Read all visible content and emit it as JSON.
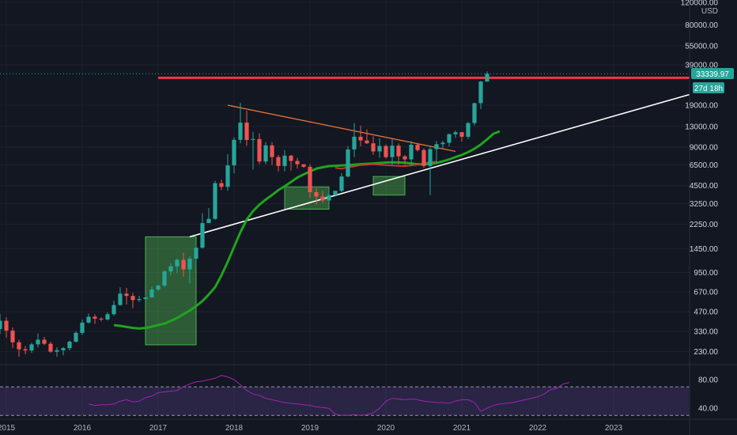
{
  "chart_data": {
    "type": "candlestick",
    "currency": "USD",
    "y_scale": "log",
    "ylim": [
      185,
      125000
    ],
    "x_range": [
      "2014-12",
      "2024-01"
    ],
    "x_tick_labels": [
      "2015",
      "2016",
      "2017",
      "2018",
      "2019",
      "2020",
      "2021",
      "2022",
      "2023"
    ],
    "y_tick_labels": [
      "120000.00",
      "80000.00",
      "55000.00",
      "39000.00",
      "19000.00",
      "13000.00",
      "9000.00",
      "6500.00",
      "4500.00",
      "3250.00",
      "2250.00",
      "1450.00",
      "950.00",
      "670.00",
      "470.00",
      "330.00",
      "230.00"
    ],
    "price_badge": {
      "value": "33339.97",
      "countdown": "27d 18h",
      "color": "#26a69a"
    },
    "rsi_panel": {
      "tick_labels": [
        "80.00",
        "40.00"
      ],
      "levels": [
        70,
        30
      ],
      "ylim": [
        27,
        100
      ],
      "values": [
        46,
        44,
        45,
        45,
        46,
        50,
        52,
        49,
        50,
        55,
        57,
        62,
        63,
        64,
        65,
        70,
        74,
        77,
        78,
        80,
        82,
        86,
        84,
        80,
        73,
        65,
        60,
        58,
        54,
        52,
        50,
        48,
        47,
        46,
        45,
        44,
        42,
        41,
        40,
        32,
        30,
        30,
        31,
        30,
        31,
        34,
        40,
        50,
        54,
        53,
        52,
        53,
        52,
        50,
        49,
        48,
        48,
        47,
        50,
        52,
        52,
        48,
        36,
        40,
        44,
        46,
        47,
        48,
        50,
        52,
        54,
        56,
        60,
        66,
        68,
        74,
        76
      ]
    },
    "candles": [
      [
        345,
        400,
        450,
        315
      ],
      [
        400,
        335,
        425,
        295
      ],
      [
        335,
        272,
        355,
        245
      ],
      [
        272,
        240,
        285,
        210
      ],
      [
        240,
        235,
        255,
        220
      ],
      [
        235,
        262,
        270,
        225
      ],
      [
        262,
        285,
        318,
        248
      ],
      [
        285,
        265,
        300,
        258
      ],
      [
        265,
        230,
        275,
        225
      ],
      [
        230,
        236,
        248,
        210
      ],
      [
        236,
        245,
        250,
        215
      ],
      [
        245,
        275,
        280,
        235
      ],
      [
        275,
        322,
        332,
        270
      ],
      [
        322,
        387,
        408,
        310
      ],
      [
        387,
        430,
        455,
        380
      ],
      [
        430,
        415,
        448,
        378
      ],
      [
        415,
        410,
        425,
        395
      ],
      [
        410,
        450,
        465,
        402
      ],
      [
        450,
        530,
        570,
        440
      ],
      [
        530,
        650,
        728,
        525
      ],
      [
        650,
        624,
        722,
        535
      ],
      [
        624,
        580,
        660,
        500
      ],
      [
        580,
        590,
        625,
        560
      ],
      [
        590,
        608,
        620,
        585
      ],
      [
        608,
        700,
        740,
        605
      ],
      [
        700,
        752,
        760,
        680
      ],
      [
        752,
        968,
        985,
        728
      ],
      [
        968,
        1060,
        1120,
        900
      ],
      [
        1060,
        1190,
        1220,
        940
      ],
      [
        1190,
        1005,
        1350,
        880
      ],
      [
        1005,
        1215,
        1270,
        780
      ],
      [
        1215,
        1480,
        1500,
        1070
      ],
      [
        1480,
        2300,
        2750,
        1460
      ],
      [
        2300,
        2480,
        3010,
        2350
      ],
      [
        2480,
        4700,
        4900,
        2450
      ],
      [
        4700,
        4400,
        5000,
        4150
      ],
      [
        4400,
        6470,
        7900,
        4100
      ],
      [
        6470,
        10220,
        10700,
        5600
      ],
      [
        10220,
        13900,
        19800,
        9600
      ],
      [
        13900,
        10200,
        17200,
        9200
      ],
      [
        10200,
        10350,
        11800,
        6000
      ],
      [
        10350,
        6930,
        11500,
        6600
      ],
      [
        6930,
        9250,
        9800,
        6600
      ],
      [
        9250,
        7500,
        9800,
        6500
      ],
      [
        7500,
        6400,
        7800,
        5800
      ],
      [
        6400,
        7700,
        8500,
        5800
      ],
      [
        7700,
        7000,
        7800,
        5900
      ],
      [
        7000,
        6600,
        7400,
        6100
      ],
      [
        6600,
        6300,
        6500,
        6200
      ],
      [
        6300,
        4000,
        6600,
        3600
      ],
      [
        4000,
        3700,
        4300,
        3200
      ],
      [
        3700,
        3450,
        4100,
        3300
      ],
      [
        3450,
        3800,
        4200,
        3350
      ],
      [
        3800,
        4100,
        4100,
        3700
      ],
      [
        4100,
        5300,
        5600,
        4000
      ],
      [
        5300,
        8600,
        9100,
        5200
      ],
      [
        8600,
        10800,
        13800,
        7500
      ],
      [
        10800,
        10100,
        13200,
        9100
      ],
      [
        10100,
        9600,
        12300,
        9500
      ],
      [
        9600,
        8300,
        10900,
        7800
      ],
      [
        8300,
        9150,
        10500,
        7400
      ],
      [
        9150,
        7500,
        9400,
        7300
      ],
      [
        7500,
        9200,
        10350,
        6500
      ],
      [
        9200,
        7600,
        9600,
        6550
      ],
      [
        7600,
        7200,
        7800,
        6500
      ],
      [
        7200,
        9350,
        10000,
        6400
      ],
      [
        9350,
        8500,
        9550,
        8300
      ],
      [
        8500,
        6400,
        8800,
        6200
      ],
      [
        6400,
        8650,
        9200,
        3800
      ],
      [
        8650,
        9450,
        10000,
        6800
      ],
      [
        9450,
        9700,
        10050,
        8800
      ],
      [
        9700,
        11300,
        11400,
        9100
      ],
      [
        11300,
        11700,
        12100,
        10600
      ],
      [
        11700,
        10800,
        11800,
        9900
      ],
      [
        10800,
        13800,
        14000,
        10400
      ],
      [
        13800,
        19700,
        19900,
        13200
      ],
      [
        19700,
        29000,
        29300,
        17700
      ],
      [
        29000,
        33339,
        34800,
        28900
      ]
    ],
    "ma_line": [
      370,
      365,
      358,
      352,
      348,
      352,
      360,
      370,
      380,
      400,
      420,
      450,
      480,
      520,
      570,
      640,
      730,
      900,
      1150,
      1500,
      1950,
      2450,
      2850,
      3200,
      3500,
      3800,
      4150,
      4450,
      4800,
      5200,
      5500,
      5800,
      6100,
      6250,
      6380,
      6420,
      6470,
      6500,
      6550,
      6600,
      6650,
      6700,
      6750,
      6800,
      6820,
      6800,
      6780,
      6700,
      6600,
      6600,
      6650,
      6750,
      6950,
      7200,
      7500,
      7800,
      8200,
      8700,
      9400,
      10300,
      11400,
      11900
    ],
    "ma_red_line": [
      6200,
      6100,
      6250,
      6350,
      6500,
      6550,
      6600,
      6550,
      6500,
      6450,
      6400,
      6380,
      6450,
      6550,
      6700,
      6850,
      6900
    ],
    "annotations": [
      {
        "type": "horizontal-ray",
        "price": 31000,
        "color": "#f23645"
      },
      {
        "type": "trendline",
        "from": [
          "2017-12",
          19000
        ],
        "to": [
          "2020-12",
          8300
        ],
        "color": "#f5793a"
      },
      {
        "type": "trendline",
        "from": [
          "2017-06",
          1800
        ],
        "to": [
          "2024-01",
          23000
        ],
        "color": "#ffffff"
      },
      {
        "type": "box",
        "from": [
          "2016-11",
          1800
        ],
        "to": [
          "2017-07",
          260
        ],
        "color": "#4caf50"
      },
      {
        "type": "box",
        "from": [
          "2018-09",
          4400
        ],
        "to": [
          "2019-04",
          2950
        ],
        "color": "#4caf50"
      },
      {
        "type": "box",
        "from": [
          "2019-11",
          5300
        ],
        "to": [
          "2020-04",
          3800
        ],
        "color": "#4caf50"
      }
    ]
  }
}
